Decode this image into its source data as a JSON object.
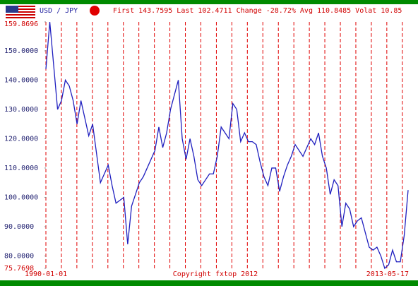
{
  "chart_data": {
    "type": "line",
    "header": {
      "pair": "USD / JPY",
      "stats": "First 143.7595 Last 102.4711 Change -28.72% Avg 110.8485 Volat 10.85"
    },
    "footer": "Copyright fxtop 2012",
    "xlim": [
      "1990-01-01",
      "2013-05-17"
    ],
    "ylim": [
      75.7698,
      159.8696
    ],
    "yticks": [
      75.7698,
      {
        "value": 80,
        "label": "80.0000"
      },
      {
        "value": 90,
        "label": "90.0000"
      },
      {
        "value": 100,
        "label": "100.0000"
      },
      {
        "value": 110,
        "label": "110.0000"
      },
      {
        "value": 120,
        "label": "120.0000"
      },
      {
        "value": 130,
        "label": "130.0000"
      },
      {
        "value": 140,
        "label": "140.0000"
      },
      {
        "value": 150,
        "label": "150.0000"
      },
      159.8696
    ],
    "grid": true,
    "color": "#1f1fbf",
    "values": [
      143.7595,
      159.8696,
      145,
      130,
      133,
      140,
      138,
      133,
      125,
      133,
      127,
      121,
      125,
      115,
      105,
      108,
      111,
      104,
      98,
      99,
      100,
      84,
      97,
      101,
      105,
      107,
      110,
      113,
      116,
      124,
      117,
      122,
      130,
      135,
      140,
      120,
      113,
      120,
      114,
      106,
      104,
      106,
      108,
      108,
      114,
      124,
      122,
      120,
      132,
      130,
      119,
      122,
      119,
      119,
      118,
      112,
      107,
      104,
      110,
      110,
      102,
      107,
      111,
      114,
      118,
      116,
      114,
      117,
      120,
      118,
      122,
      114,
      110,
      101,
      106,
      104,
      90,
      98,
      96,
      90,
      92,
      93,
      88,
      83,
      82,
      83,
      80,
      75.7698,
      77,
      82,
      78,
      78,
      87,
      102.4711
    ]
  }
}
